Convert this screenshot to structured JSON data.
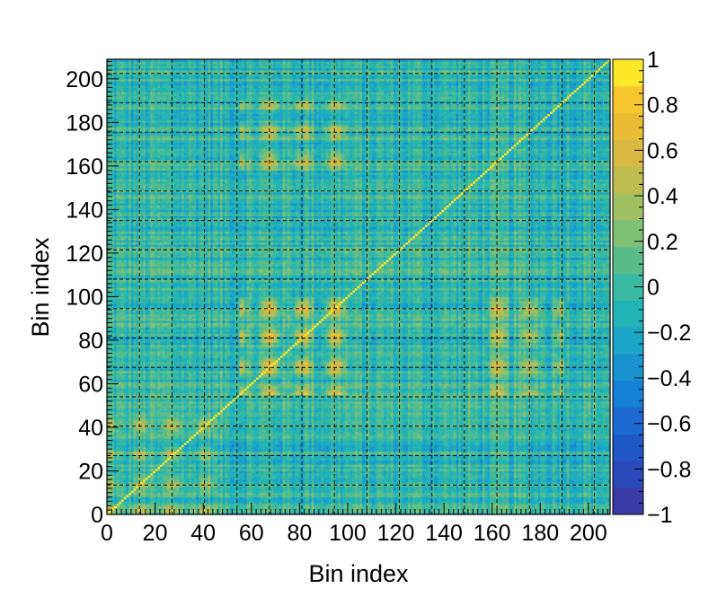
{
  "chart_data": {
    "type": "heatmap",
    "title": "",
    "xlabel": "Bin index",
    "ylabel": "Bin index",
    "nbins": 209,
    "xlim": [
      0,
      209
    ],
    "ylim": [
      0,
      209
    ],
    "x_ticks": [
      0,
      20,
      40,
      60,
      80,
      100,
      120,
      140,
      160,
      180,
      200
    ],
    "y_ticks": [
      0,
      20,
      40,
      60,
      80,
      100,
      120,
      140,
      160,
      180,
      200
    ],
    "x_tick_labels": [
      "0",
      "20",
      "40",
      "60",
      "80",
      "100",
      "120",
      "140",
      "160",
      "180",
      "200"
    ],
    "y_tick_labels": [
      "0",
      "20",
      "40",
      "60",
      "80",
      "100",
      "120",
      "140",
      "160",
      "180",
      "200"
    ],
    "zlim": [
      -1,
      1
    ],
    "color_ticks": [
      1,
      0.8,
      0.6,
      0.4,
      0.2,
      0,
      -0.2,
      -0.4,
      -0.6,
      -0.8,
      -1
    ],
    "color_tick_labels": [
      "1",
      "0.8",
      "0.6",
      "0.4",
      "0.2",
      "0",
      "−0.2",
      "−0.4",
      "−0.6",
      "−0.8",
      "−1"
    ],
    "grid": true,
    "grid_style": "dashed",
    "colorbar": "right",
    "diagonal_value": 1.0,
    "typical_off_diagonal_range": [
      -0.3,
      0.2
    ],
    "blocks_peak": [
      {
        "x": [
          55,
          100
        ],
        "y": [
          55,
          100
        ],
        "value": 0.75
      },
      {
        "x": [
          0,
          50
        ],
        "y": [
          0,
          50
        ],
        "value": 0.45
      },
      {
        "x": [
          55,
          100
        ],
        "y": [
          155,
          190
        ],
        "value": 0.55
      },
      {
        "x": [
          160,
          185
        ],
        "y": [
          55,
          100
        ],
        "value": 0.5
      }
    ]
  }
}
